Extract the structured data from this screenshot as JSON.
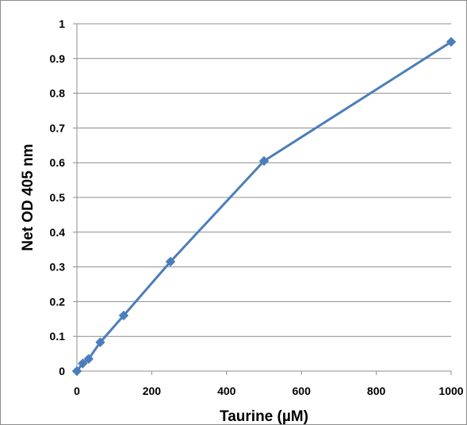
{
  "chart_data": {
    "type": "line",
    "title": "",
    "xlabel": "Taurine (µM)",
    "ylabel": "Net OD 405 nm",
    "xlim": [
      0,
      1000
    ],
    "ylim": [
      0,
      1
    ],
    "x_ticks": [
      0,
      200,
      400,
      600,
      800,
      1000
    ],
    "y_ticks": [
      0,
      0.1,
      0.2,
      0.3,
      0.4,
      0.5,
      0.6,
      0.7,
      0.8,
      0.9,
      1
    ],
    "grid": true,
    "legend": "none",
    "series": [
      {
        "color": "#4a7ebb",
        "marker": "diamond",
        "x": [
          0,
          15.6,
          31.25,
          62.5,
          125,
          250,
          500,
          1000
        ],
        "y": [
          0.0,
          0.022,
          0.035,
          0.083,
          0.16,
          0.315,
          0.605,
          0.948
        ]
      }
    ]
  }
}
